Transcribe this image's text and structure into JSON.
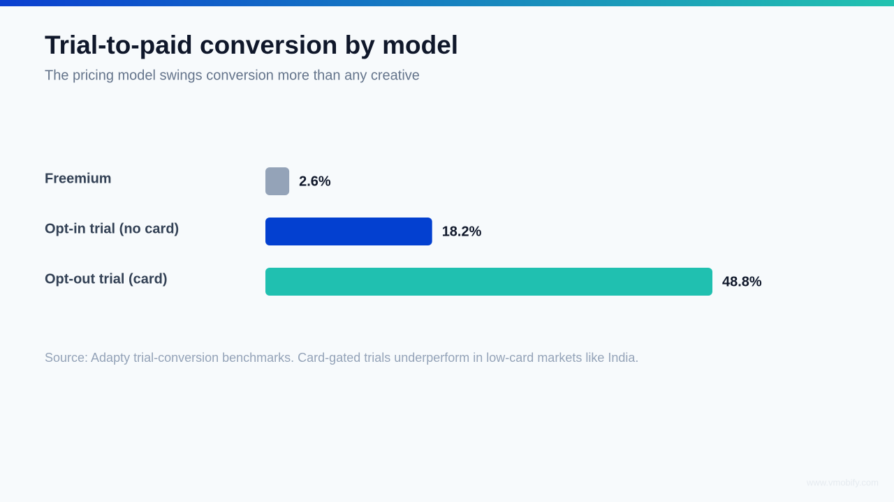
{
  "chart_data": {
    "type": "hbar",
    "title": "Trial-to-paid conversion by model",
    "subtitle": "The pricing model swings conversion more than any creative",
    "categories": [
      "Freemium",
      "Opt-in trial (no card)",
      "Opt-out trial (card)"
    ],
    "values": [
      2.6,
      18.2,
      48.8
    ],
    "value_labels": [
      "2.6%",
      "18.2%",
      "48.8%"
    ],
    "colors": [
      "#94a3b8",
      "#0340d0",
      "#20c0b0"
    ],
    "source": "Source: Adapty trial-conversion benchmarks. Card-gated trials underperform in low-card markets like India.",
    "watermark": "www.vmobify.com"
  }
}
